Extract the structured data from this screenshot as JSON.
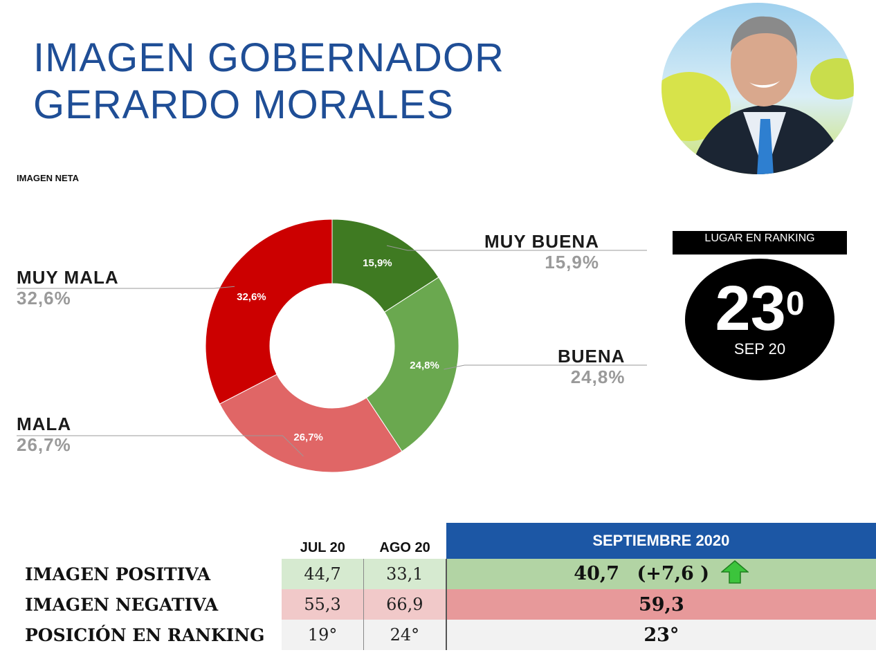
{
  "title": {
    "line1": "IMAGEN GOBERNADOR",
    "line2": "GERARDO MORALES"
  },
  "chart_data": {
    "type": "pie",
    "title": "IMAGEN NETA",
    "categories": [
      "MUY BUENA",
      "BUENA",
      "MALA",
      "MUY MALA"
    ],
    "values": [
      15.9,
      24.8,
      26.7,
      32.6
    ],
    "value_labels": [
      "15,9%",
      "24,8%",
      "26,7%",
      "32,6%"
    ],
    "colors": [
      "#3f7a22",
      "#6aa84f",
      "#e06666",
      "#cc0000"
    ],
    "hole": "donut"
  },
  "ranking": {
    "label": "LUGAR EN RANKING",
    "position": "23",
    "ordinal": "0",
    "date": "SEP 20"
  },
  "table": {
    "columns": [
      "JUL 20",
      "AGO 20",
      "SEPTIEMBRE 2020"
    ],
    "rows": [
      {
        "label": "IMAGEN POSITIVA",
        "jul": "44,7",
        "ago": "33,1",
        "sep": "40,7",
        "delta": "(+7,6 )"
      },
      {
        "label": "IMAGEN NEGATIVA",
        "jul": "55,3",
        "ago": "66,9",
        "sep": "59,3"
      },
      {
        "label": "POSICIÓN EN RANKING",
        "jul": "19°",
        "ago": "24°",
        "sep": "23°"
      }
    ],
    "colors": {
      "header": "#1c57a5",
      "positive": "#b2d4a4",
      "negative": "#e7999a",
      "arrow": "#3cc43c"
    }
  }
}
